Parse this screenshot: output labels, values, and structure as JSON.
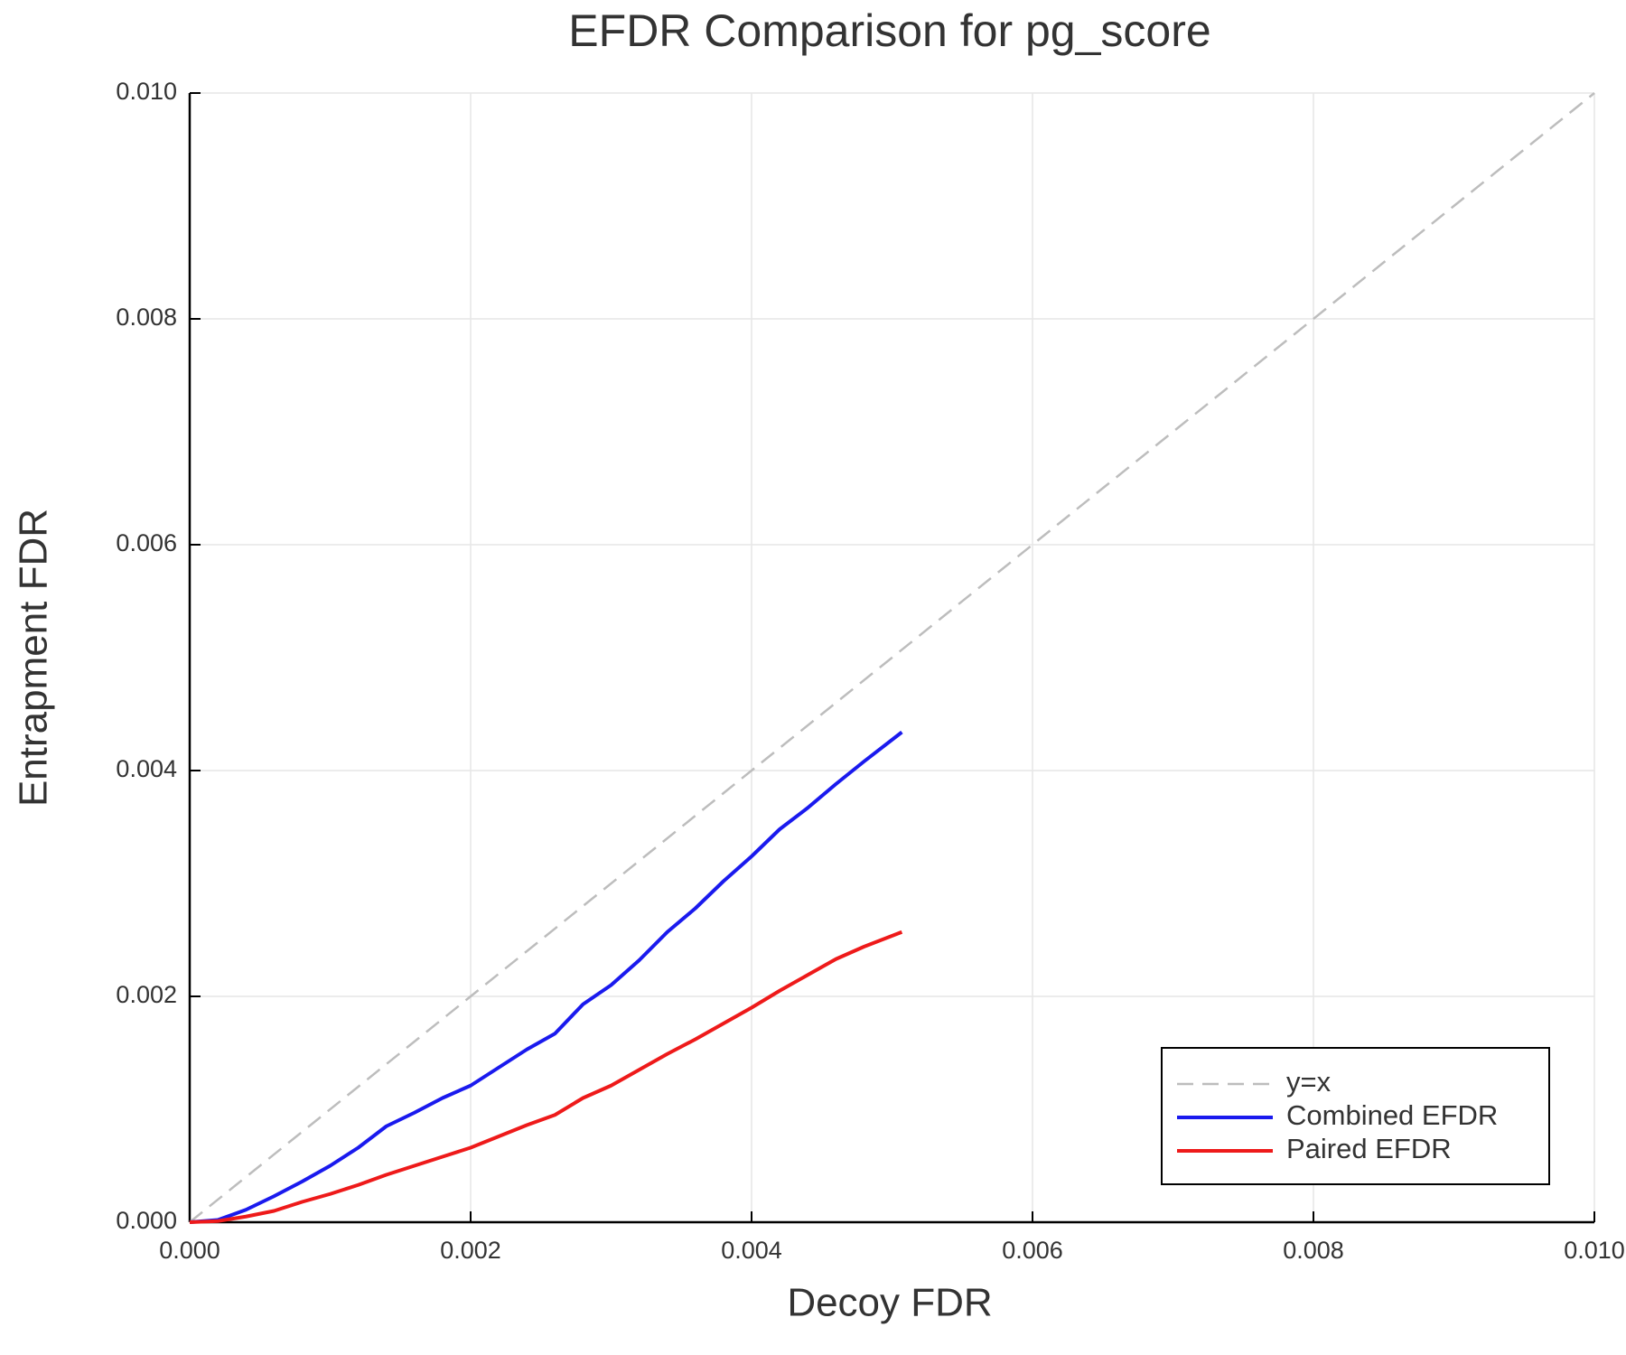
{
  "chart_data": {
    "type": "line",
    "title": "EFDR Comparison for pg_score",
    "x_label": "Decoy FDR",
    "y_label": "Entrapment FDR",
    "xlim": [
      0,
      0.01
    ],
    "ylim": [
      0,
      0.01
    ],
    "xticks": [
      {
        "value": 0,
        "label": "0.000"
      },
      {
        "value": 0.002,
        "label": "0.002"
      },
      {
        "value": 0.004,
        "label": "0.004"
      },
      {
        "value": 0.006,
        "label": "0.006"
      },
      {
        "value": 0.008,
        "label": "0.008"
      },
      {
        "value": 0.01,
        "label": "0.010"
      }
    ],
    "yticks": [
      {
        "value": 0,
        "label": "0.000"
      },
      {
        "value": 0.002,
        "label": "0.002"
      },
      {
        "value": 0.004,
        "label": "0.004"
      },
      {
        "value": 0.006,
        "label": "0.006"
      },
      {
        "value": 0.008,
        "label": "0.008"
      },
      {
        "value": 0.01,
        "label": "0.010"
      }
    ],
    "grid": true,
    "legend": "lower right",
    "series": [
      {
        "name": "y=x",
        "color": "#bdbdbd",
        "dashed": true,
        "x": [
          0,
          0.01
        ],
        "values": [
          0,
          0.01
        ]
      },
      {
        "name": "Combined EFDR",
        "color": "#1a1aee",
        "dashed": false,
        "x": [
          0,
          0.0002,
          0.0004,
          0.0006,
          0.0008,
          0.001,
          0.0012,
          0.0014,
          0.0016,
          0.0018,
          0.002,
          0.0022,
          0.0024,
          0.0026,
          0.0028,
          0.003,
          0.0032,
          0.0034,
          0.0036,
          0.0038,
          0.004,
          0.0042,
          0.0044,
          0.0046,
          0.0048,
          0.00507
        ],
        "values": [
          0,
          2e-05,
          0.00011,
          0.00023,
          0.00036,
          0.0005,
          0.00066,
          0.00085,
          0.00097,
          0.0011,
          0.00121,
          0.00137,
          0.00153,
          0.00167,
          0.00193,
          0.0021,
          0.00232,
          0.00257,
          0.00278,
          0.00302,
          0.00324,
          0.00348,
          0.00367,
          0.00388,
          0.00408,
          0.00434
        ]
      },
      {
        "name": "Paired EFDR",
        "color": "#ee1a1a",
        "dashed": false,
        "x": [
          0,
          0.0002,
          0.0004,
          0.0006,
          0.0008,
          0.001,
          0.0012,
          0.0014,
          0.0016,
          0.0018,
          0.002,
          0.0022,
          0.0024,
          0.0026,
          0.0028,
          0.003,
          0.0032,
          0.0034,
          0.0036,
          0.0038,
          0.004,
          0.0042,
          0.0044,
          0.0046,
          0.0048,
          0.00507
        ],
        "values": [
          0,
          1e-05,
          5e-05,
          0.0001,
          0.00018,
          0.00025,
          0.00033,
          0.00042,
          0.0005,
          0.00058,
          0.00066,
          0.00076,
          0.00086,
          0.00095,
          0.0011,
          0.00121,
          0.00135,
          0.00149,
          0.00162,
          0.00176,
          0.0019,
          0.00205,
          0.00219,
          0.00233,
          0.00244,
          0.00257
        ]
      }
    ]
  }
}
